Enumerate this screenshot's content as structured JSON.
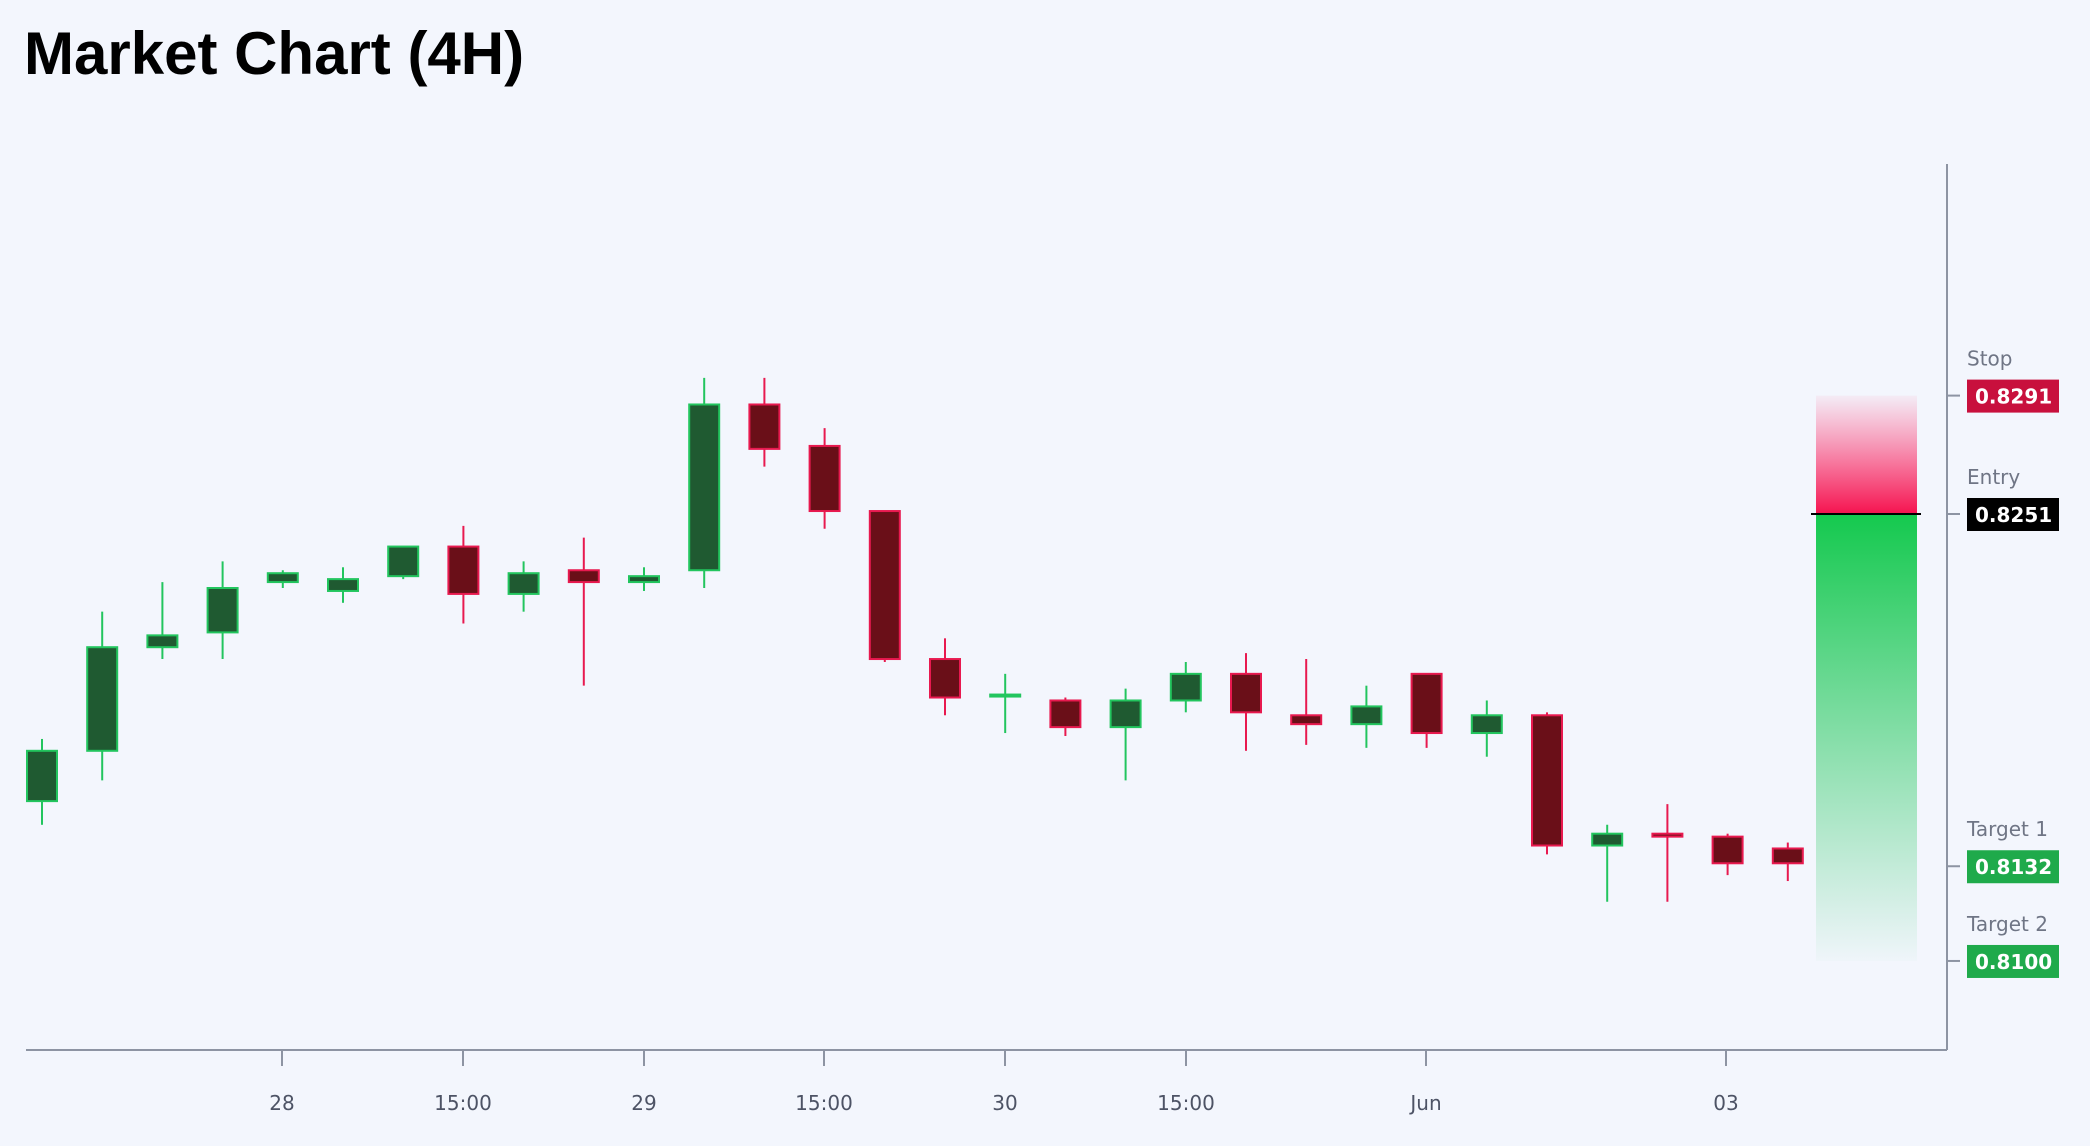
{
  "title": "Market Chart (4H)",
  "colors": {
    "background": "#f3f6fd",
    "bull_fill": "#1f5a31",
    "bull_border": "#22c55e",
    "bear_fill": "#6a0f18",
    "bear_border": "#e8194f",
    "stop": "#c8103d",
    "entry": "#000000",
    "target": "#1faa4b"
  },
  "chart_data": {
    "type": "candlestick",
    "timeframe": "4H",
    "ylim": [
      0.805,
      0.84
    ],
    "x_tick_labels": [
      "28",
      "15:00",
      "29",
      "15:00",
      "30",
      "15:00",
      "Jun",
      "03"
    ],
    "candles": [
      {
        "o": 0.8154,
        "h": 0.8175,
        "l": 0.8146,
        "c": 0.8171
      },
      {
        "o": 0.8171,
        "h": 0.8218,
        "l": 0.8161,
        "c": 0.8206
      },
      {
        "o": 0.8206,
        "h": 0.8228,
        "l": 0.8202,
        "c": 0.821
      },
      {
        "o": 0.8211,
        "h": 0.8235,
        "l": 0.8202,
        "c": 0.8226
      },
      {
        "o": 0.8228,
        "h": 0.8232,
        "l": 0.8226,
        "c": 0.8231
      },
      {
        "o": 0.8225,
        "h": 0.8233,
        "l": 0.8221,
        "c": 0.8229
      },
      {
        "o": 0.823,
        "h": 0.824,
        "l": 0.8229,
        "c": 0.824
      },
      {
        "o": 0.824,
        "h": 0.8247,
        "l": 0.8214,
        "c": 0.8224
      },
      {
        "o": 0.8224,
        "h": 0.8235,
        "l": 0.8218,
        "c": 0.8231
      },
      {
        "o": 0.8232,
        "h": 0.8243,
        "l": 0.8193,
        "c": 0.8228
      },
      {
        "o": 0.8228,
        "h": 0.8233,
        "l": 0.8225,
        "c": 0.823
      },
      {
        "o": 0.8232,
        "h": 0.8297,
        "l": 0.8226,
        "c": 0.8288
      },
      {
        "o": 0.8288,
        "h": 0.8297,
        "l": 0.8267,
        "c": 0.8273
      },
      {
        "o": 0.8274,
        "h": 0.828,
        "l": 0.8246,
        "c": 0.8252
      },
      {
        "o": 0.8252,
        "h": 0.8252,
        "l": 0.8201,
        "c": 0.8202
      },
      {
        "o": 0.8202,
        "h": 0.8209,
        "l": 0.8183,
        "c": 0.8189
      },
      {
        "o": 0.819,
        "h": 0.8197,
        "l": 0.8177,
        "c": 0.819
      },
      {
        "o": 0.8188,
        "h": 0.8189,
        "l": 0.8176,
        "c": 0.8179
      },
      {
        "o": 0.8179,
        "h": 0.8192,
        "l": 0.8161,
        "c": 0.8188
      },
      {
        "o": 0.8188,
        "h": 0.8201,
        "l": 0.8184,
        "c": 0.8197
      },
      {
        "o": 0.8197,
        "h": 0.8204,
        "l": 0.8171,
        "c": 0.8184
      },
      {
        "o": 0.8183,
        "h": 0.8202,
        "l": 0.8173,
        "c": 0.818
      },
      {
        "o": 0.818,
        "h": 0.8193,
        "l": 0.8172,
        "c": 0.8186
      },
      {
        "o": 0.8197,
        "h": 0.8197,
        "l": 0.8172,
        "c": 0.8177
      },
      {
        "o": 0.8177,
        "h": 0.8188,
        "l": 0.8169,
        "c": 0.8183
      },
      {
        "o": 0.8183,
        "h": 0.8184,
        "l": 0.8136,
        "c": 0.8139
      },
      {
        "o": 0.8139,
        "h": 0.8146,
        "l": 0.812,
        "c": 0.8143
      },
      {
        "o": 0.8143,
        "h": 0.8153,
        "l": 0.812,
        "c": 0.8142
      },
      {
        "o": 0.8142,
        "h": 0.8143,
        "l": 0.8129,
        "c": 0.8133
      },
      {
        "o": 0.8138,
        "h": 0.814,
        "l": 0.8127,
        "c": 0.8133
      }
    ],
    "levels": [
      {
        "name": "Stop",
        "value": "0.8291",
        "kind": "stop"
      },
      {
        "name": "Entry",
        "value": "0.8251",
        "kind": "entry"
      },
      {
        "name": "Target 1",
        "value": "0.8132",
        "kind": "target"
      },
      {
        "name": "Target 2",
        "value": "0.8100",
        "kind": "target"
      }
    ],
    "position": {
      "entry": 0.8251,
      "stop": 0.8291,
      "target": 0.81
    }
  }
}
